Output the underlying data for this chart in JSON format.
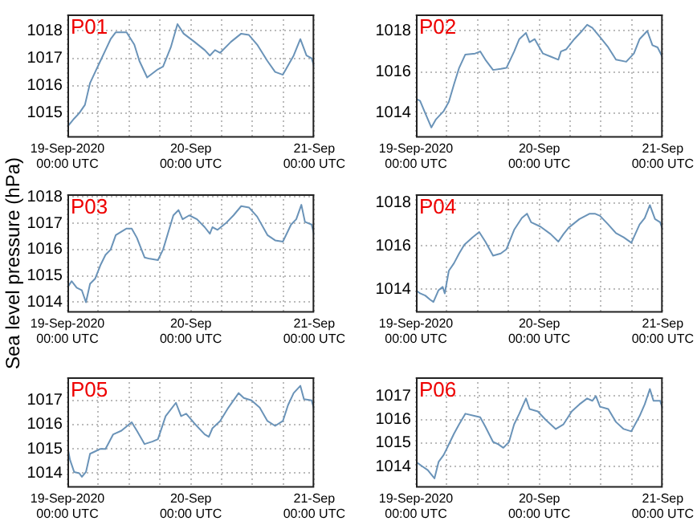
{
  "chart_data": [
    {
      "type": "line",
      "title": "P01",
      "marker": "none",
      "grid": true,
      "xlim": [
        "2020-09-19T00:00",
        "2020-09-21T00:00"
      ],
      "xticks": [
        {
          "value": "2020-09-19T00:00",
          "label": "19-Sep-2020\n00:00 UTC"
        },
        {
          "value": "2020-09-19T06:00",
          "label": null
        },
        {
          "value": "2020-09-19T12:00",
          "label": null
        },
        {
          "value": "2020-09-19T18:00",
          "label": null
        },
        {
          "value": "2020-09-20T00:00",
          "label": "20-Sep\n00:00 UTC"
        },
        {
          "value": "2020-09-20T06:00",
          "label": null
        },
        {
          "value": "2020-09-20T12:00",
          "label": null
        },
        {
          "value": "2020-09-20T18:00",
          "label": null
        },
        {
          "value": "2020-09-21T00:00",
          "label": "21-Sep\n00:00 UTC"
        }
      ],
      "ylim": [
        1014.1,
        1018.6
      ],
      "yticks": [
        1015,
        1016,
        1017,
        1018
      ],
      "x": [
        "2020-09-19T00:00",
        "2020-09-19T01:18",
        "2020-09-19T02:18",
        "2020-09-19T03:24",
        "2020-09-19T04:24",
        "2020-09-19T05:24",
        "2020-09-19T06:24",
        "2020-09-19T07:24",
        "2020-09-19T08:24",
        "2020-09-19T09:24",
        "2020-09-19T11:30",
        "2020-09-19T13:00",
        "2020-09-19T14:00",
        "2020-09-19T15:30",
        "2020-09-19T17:36",
        "2020-09-19T18:36",
        "2020-09-19T20:06",
        "2020-09-19T21:24",
        "2020-09-19T22:36",
        "2020-09-20T00:42",
        "2020-09-20T02:42",
        "2020-09-20T03:42",
        "2020-09-20T04:42",
        "2020-09-20T05:42",
        "2020-09-20T07:48",
        "2020-09-20T09:48",
        "2020-09-20T11:18",
        "2020-09-20T12:54",
        "2020-09-20T14:54",
        "2020-09-20T16:24",
        "2020-09-20T17:54",
        "2020-09-20T20:00",
        "2020-09-20T21:18",
        "2020-09-20T22:30",
        "2020-09-20T23:30",
        "2020-09-21T00:00"
      ],
      "series": [
        {
          "color": "#6a93b8",
          "values": [
            1014.5,
            1014.8,
            1015.0,
            1015.3,
            1016.1,
            1016.5,
            1016.9,
            1017.3,
            1017.7,
            1017.95,
            1017.95,
            1017.5,
            1016.9,
            1016.3,
            1016.6,
            1016.7,
            1017.4,
            1018.25,
            1017.9,
            1017.6,
            1017.3,
            1017.1,
            1017.3,
            1017.2,
            1017.6,
            1017.9,
            1017.85,
            1017.5,
            1016.9,
            1016.5,
            1016.4,
            1017.1,
            1017.7,
            1017.1,
            1017.0,
            1016.7
          ]
        }
      ]
    },
    {
      "type": "line",
      "title": "P02",
      "marker": "none",
      "grid": true,
      "xlim": [
        "2020-09-19T00:00",
        "2020-09-21T00:00"
      ],
      "xticks": [
        {
          "value": "2020-09-19T00:00",
          "label": "19-Sep-2020\n00:00 UTC"
        },
        {
          "value": "2020-09-19T06:00",
          "label": null
        },
        {
          "value": "2020-09-19T12:00",
          "label": null
        },
        {
          "value": "2020-09-19T18:00",
          "label": null
        },
        {
          "value": "2020-09-20T00:00",
          "label": "20-Sep\n00:00 UTC"
        },
        {
          "value": "2020-09-20T06:00",
          "label": null
        },
        {
          "value": "2020-09-20T12:00",
          "label": null
        },
        {
          "value": "2020-09-20T18:00",
          "label": null
        },
        {
          "value": "2020-09-21T00:00",
          "label": "21-Sep\n00:00 UTC"
        }
      ],
      "ylim": [
        1012.8,
        1018.8
      ],
      "yticks": [
        1014,
        1016,
        1018
      ],
      "x": [
        "2020-09-19T00:00",
        "2020-09-19T00:48",
        "2020-09-19T01:48",
        "2020-09-19T03:00",
        "2020-09-19T03:54",
        "2020-09-19T05:24",
        "2020-09-19T06:24",
        "2020-09-19T07:24",
        "2020-09-19T08:24",
        "2020-09-19T09:36",
        "2020-09-19T11:30",
        "2020-09-19T12:30",
        "2020-09-19T13:30",
        "2020-09-19T15:00",
        "2020-09-19T16:30",
        "2020-09-19T17:36",
        "2020-09-19T19:06",
        "2020-09-19T20:06",
        "2020-09-19T21:24",
        "2020-09-19T22:06",
        "2020-09-19T23:06",
        "2020-09-20T00:42",
        "2020-09-20T02:12",
        "2020-09-20T03:42",
        "2020-09-20T04:12",
        "2020-09-20T05:12",
        "2020-09-20T06:48",
        "2020-09-20T08:18",
        "2020-09-20T09:18",
        "2020-09-20T10:18",
        "2020-09-20T11:48",
        "2020-09-20T13:24",
        "2020-09-20T14:54",
        "2020-09-20T16:54",
        "2020-09-20T18:24",
        "2020-09-20T19:30",
        "2020-09-20T21:00",
        "2020-09-20T22:00",
        "2020-09-20T23:00",
        "2020-09-21T00:00"
      ],
      "series": [
        {
          "color": "#6a93b8",
          "values": [
            1014.7,
            1014.6,
            1014.0,
            1013.3,
            1013.7,
            1014.1,
            1014.55,
            1015.4,
            1016.2,
            1016.85,
            1016.9,
            1017.0,
            1016.6,
            1016.1,
            1016.15,
            1016.2,
            1017.0,
            1017.6,
            1017.9,
            1017.45,
            1017.6,
            1016.9,
            1016.75,
            1016.6,
            1017.0,
            1017.1,
            1017.6,
            1018.0,
            1018.3,
            1018.15,
            1017.7,
            1017.2,
            1016.6,
            1016.5,
            1016.9,
            1017.6,
            1018.0,
            1017.3,
            1017.2,
            1016.7
          ]
        }
      ]
    },
    {
      "type": "line",
      "title": "P03",
      "ylabel": "Sea level pressure (hPa)",
      "marker": "none",
      "grid": true,
      "xlim": [
        "2020-09-19T00:00",
        "2020-09-21T00:00"
      ],
      "xticks": [
        {
          "value": "2020-09-19T00:00",
          "label": "19-Sep-2020\n00:00 UTC"
        },
        {
          "value": "2020-09-19T06:00",
          "label": null
        },
        {
          "value": "2020-09-19T12:00",
          "label": null
        },
        {
          "value": "2020-09-19T18:00",
          "label": null
        },
        {
          "value": "2020-09-20T00:00",
          "label": "20-Sep\n00:00 UTC"
        },
        {
          "value": "2020-09-20T06:00",
          "label": null
        },
        {
          "value": "2020-09-20T12:00",
          "label": null
        },
        {
          "value": "2020-09-20T18:00",
          "label": null
        },
        {
          "value": "2020-09-21T00:00",
          "label": "21-Sep\n00:00 UTC"
        }
      ],
      "ylim": [
        1013.6,
        1018.1
      ],
      "yticks": [
        1014,
        1015,
        1016,
        1017,
        1018
      ],
      "x": [
        "2020-09-19T00:00",
        "2020-09-19T00:48",
        "2020-09-19T01:48",
        "2020-09-19T02:48",
        "2020-09-19T03:36",
        "2020-09-19T04:24",
        "2020-09-19T05:24",
        "2020-09-19T06:24",
        "2020-09-19T07:24",
        "2020-09-19T08:24",
        "2020-09-19T09:24",
        "2020-09-19T11:30",
        "2020-09-19T12:30",
        "2020-09-19T13:30",
        "2020-09-19T15:00",
        "2020-09-19T16:00",
        "2020-09-19T17:36",
        "2020-09-19T18:36",
        "2020-09-19T19:36",
        "2020-09-19T20:36",
        "2020-09-19T21:36",
        "2020-09-19T22:24",
        "2020-09-19T23:42",
        "2020-09-20T01:12",
        "2020-09-20T02:42",
        "2020-09-20T03:42",
        "2020-09-20T04:12",
        "2020-09-20T05:12",
        "2020-09-20T06:48",
        "2020-09-20T08:18",
        "2020-09-20T09:48",
        "2020-09-20T11:18",
        "2020-09-20T12:54",
        "2020-09-20T14:54",
        "2020-09-20T16:24",
        "2020-09-20T17:54",
        "2020-09-20T19:30",
        "2020-09-20T20:30",
        "2020-09-20T21:30",
        "2020-09-20T22:12",
        "2020-09-20T23:30",
        "2020-09-21T00:00"
      ],
      "series": [
        {
          "color": "#6a93b8",
          "values": [
            1014.55,
            1014.8,
            1014.55,
            1014.45,
            1014.0,
            1014.7,
            1014.9,
            1015.4,
            1015.8,
            1016.0,
            1016.55,
            1016.8,
            1016.8,
            1016.45,
            1015.7,
            1015.65,
            1015.6,
            1016.0,
            1016.65,
            1017.3,
            1017.5,
            1017.15,
            1017.3,
            1017.15,
            1016.85,
            1016.6,
            1016.85,
            1016.75,
            1017.0,
            1017.3,
            1017.65,
            1017.6,
            1017.25,
            1016.55,
            1016.35,
            1016.3,
            1016.95,
            1017.15,
            1017.7,
            1017.05,
            1016.95,
            1016.55
          ]
        }
      ]
    },
    {
      "type": "line",
      "title": "P04",
      "marker": "none",
      "grid": true,
      "xlim": [
        "2020-09-19T00:00",
        "2020-09-21T00:00"
      ],
      "xticks": [
        {
          "value": "2020-09-19T00:00",
          "label": "19-Sep-2020\n00:00 UTC"
        },
        {
          "value": "2020-09-19T06:00",
          "label": null
        },
        {
          "value": "2020-09-19T12:00",
          "label": null
        },
        {
          "value": "2020-09-19T18:00",
          "label": null
        },
        {
          "value": "2020-09-20T00:00",
          "label": "20-Sep\n00:00 UTC"
        },
        {
          "value": "2020-09-20T06:00",
          "label": null
        },
        {
          "value": "2020-09-20T12:00",
          "label": null
        },
        {
          "value": "2020-09-20T18:00",
          "label": null
        },
        {
          "value": "2020-09-21T00:00",
          "label": "21-Sep\n00:00 UTC"
        }
      ],
      "ylim": [
        1012.9,
        1018.4
      ],
      "yticks": [
        1014,
        1016,
        1018
      ],
      "x": [
        "2020-09-19T00:00",
        "2020-09-19T00:48",
        "2020-09-19T01:48",
        "2020-09-19T02:48",
        "2020-09-19T03:24",
        "2020-09-19T04:24",
        "2020-09-19T05:12",
        "2020-09-19T05:36",
        "2020-09-19T06:24",
        "2020-09-19T07:24",
        "2020-09-19T08:24",
        "2020-09-19T09:24",
        "2020-09-19T11:00",
        "2020-09-19T12:18",
        "2020-09-19T13:30",
        "2020-09-19T15:00",
        "2020-09-19T16:30",
        "2020-09-19T17:36",
        "2020-09-19T19:06",
        "2020-09-19T20:36",
        "2020-09-19T21:36",
        "2020-09-19T22:24",
        "2020-09-20T00:12",
        "2020-09-20T02:12",
        "2020-09-20T03:42",
        "2020-09-20T04:42",
        "2020-09-20T05:42",
        "2020-09-20T07:48",
        "2020-09-20T09:48",
        "2020-09-20T10:48",
        "2020-09-20T11:48",
        "2020-09-20T13:24",
        "2020-09-20T14:54",
        "2020-09-20T16:24",
        "2020-09-20T17:54",
        "2020-09-20T19:30",
        "2020-09-20T20:30",
        "2020-09-20T21:30",
        "2020-09-20T22:30",
        "2020-09-20T23:30",
        "2020-09-21T00:00"
      ],
      "series": [
        {
          "color": "#6a93b8",
          "values": [
            1013.95,
            1013.8,
            1013.7,
            1013.5,
            1013.4,
            1013.95,
            1014.1,
            1013.8,
            1014.85,
            1015.2,
            1015.65,
            1016.05,
            1016.4,
            1016.65,
            1016.2,
            1015.55,
            1015.65,
            1015.85,
            1016.75,
            1017.3,
            1017.5,
            1017.1,
            1016.9,
            1016.55,
            1016.2,
            1016.55,
            1016.85,
            1017.25,
            1017.5,
            1017.5,
            1017.4,
            1017.0,
            1016.6,
            1016.4,
            1016.15,
            1017.0,
            1017.3,
            1017.9,
            1017.25,
            1017.1,
            1016.75
          ]
        }
      ]
    },
    {
      "type": "line",
      "title": "P05",
      "marker": "none",
      "grid": true,
      "xlim": [
        "2020-09-19T00:00",
        "2020-09-21T00:00"
      ],
      "xticks": [
        {
          "value": "2020-09-19T00:00",
          "label": "19-Sep-2020\n00:00 UTC"
        },
        {
          "value": "2020-09-19T06:00",
          "label": null
        },
        {
          "value": "2020-09-19T12:00",
          "label": null
        },
        {
          "value": "2020-09-19T18:00",
          "label": null
        },
        {
          "value": "2020-09-20T00:00",
          "label": "20-Sep\n00:00 UTC"
        },
        {
          "value": "2020-09-20T06:00",
          "label": null
        },
        {
          "value": "2020-09-20T12:00",
          "label": null
        },
        {
          "value": "2020-09-20T18:00",
          "label": null
        },
        {
          "value": "2020-09-21T00:00",
          "label": "21-Sep\n00:00 UTC"
        }
      ],
      "ylim": [
        1013.4,
        1017.95
      ],
      "yticks": [
        1014,
        1015,
        1016,
        1017
      ],
      "x": [
        "2020-09-19T00:00",
        "2020-09-19T00:30",
        "2020-09-19T01:18",
        "2020-09-19T02:18",
        "2020-09-19T02:48",
        "2020-09-19T03:36",
        "2020-09-19T04:24",
        "2020-09-19T05:24",
        "2020-09-19T06:24",
        "2020-09-19T07:24",
        "2020-09-19T07:54",
        "2020-09-19T08:54",
        "2020-09-19T10:30",
        "2020-09-19T12:30",
        "2020-09-19T13:30",
        "2020-09-19T15:00",
        "2020-09-19T16:30",
        "2020-09-19T17:36",
        "2020-09-19T19:06",
        "2020-09-19T21:06",
        "2020-09-19T22:06",
        "2020-09-19T23:06",
        "2020-09-20T00:42",
        "2020-09-20T02:42",
        "2020-09-20T03:30",
        "2020-09-20T04:12",
        "2020-09-20T05:42",
        "2020-09-20T07:18",
        "2020-09-20T09:18",
        "2020-09-20T10:18",
        "2020-09-20T11:48",
        "2020-09-20T13:24",
        "2020-09-20T14:54",
        "2020-09-20T16:24",
        "2020-09-20T17:54",
        "2020-09-20T18:54",
        "2020-09-20T20:00",
        "2020-09-20T21:18",
        "2020-09-20T22:00",
        "2020-09-20T23:30",
        "2020-09-21T00:00"
      ],
      "series": [
        {
          "color": "#6a93b8",
          "values": [
            1015.1,
            1014.55,
            1014.05,
            1014.0,
            1013.85,
            1014.05,
            1014.8,
            1014.9,
            1015.0,
            1015.0,
            1015.2,
            1015.6,
            1015.75,
            1016.1,
            1015.75,
            1015.2,
            1015.3,
            1015.4,
            1016.35,
            1016.9,
            1016.35,
            1016.45,
            1016.05,
            1015.6,
            1015.5,
            1015.85,
            1016.15,
            1016.7,
            1017.3,
            1017.1,
            1017.0,
            1016.7,
            1016.15,
            1015.95,
            1016.15,
            1016.8,
            1017.3,
            1017.6,
            1017.05,
            1017.0,
            1016.6
          ]
        }
      ]
    },
    {
      "type": "line",
      "title": "P06",
      "marker": "none",
      "grid": true,
      "xlim": [
        "2020-09-19T00:00",
        "2020-09-21T00:00"
      ],
      "xticks": [
        {
          "value": "2020-09-19T00:00",
          "label": "19-Sep-2020\n00:00 UTC"
        },
        {
          "value": "2020-09-19T06:00",
          "label": null
        },
        {
          "value": "2020-09-19T12:00",
          "label": null
        },
        {
          "value": "2020-09-19T18:00",
          "label": null
        },
        {
          "value": "2020-09-20T00:00",
          "label": "20-Sep\n00:00 UTC"
        },
        {
          "value": "2020-09-20T06:00",
          "label": null
        },
        {
          "value": "2020-09-20T12:00",
          "label": null
        },
        {
          "value": "2020-09-20T18:00",
          "label": null
        },
        {
          "value": "2020-09-21T00:00",
          "label": "21-Sep\n00:00 UTC"
        }
      ],
      "ylim": [
        1013.1,
        1017.8
      ],
      "yticks": [
        1014,
        1015,
        1016,
        1017
      ],
      "x": [
        "2020-09-19T00:00",
        "2020-09-19T01:18",
        "2020-09-19T02:18",
        "2020-09-19T03:36",
        "2020-09-19T04:24",
        "2020-09-19T05:24",
        "2020-09-19T06:24",
        "2020-09-19T07:24",
        "2020-09-19T08:24",
        "2020-09-19T09:36",
        "2020-09-19T11:30",
        "2020-09-19T12:30",
        "2020-09-19T13:30",
        "2020-09-19T15:00",
        "2020-09-19T16:00",
        "2020-09-19T17:00",
        "2020-09-19T18:06",
        "2020-09-19T19:06",
        "2020-09-19T20:06",
        "2020-09-19T21:24",
        "2020-09-19T22:06",
        "2020-09-19T23:42",
        "2020-09-20T01:12",
        "2020-09-20T03:12",
        "2020-09-20T04:42",
        "2020-09-20T06:18",
        "2020-09-20T07:48",
        "2020-09-20T09:18",
        "2020-09-20T10:18",
        "2020-09-20T11:00",
        "2020-09-20T11:48",
        "2020-09-20T13:24",
        "2020-09-20T14:54",
        "2020-09-20T16:24",
        "2020-09-20T17:54",
        "2020-09-20T19:30",
        "2020-09-20T20:30",
        "2020-09-20T21:30",
        "2020-09-20T22:12",
        "2020-09-20T23:30",
        "2020-09-21T00:00"
      ],
      "series": [
        {
          "color": "#6a93b8",
          "values": [
            1014.2,
            1014.0,
            1013.85,
            1013.5,
            1014.2,
            1014.5,
            1014.95,
            1015.4,
            1015.8,
            1016.25,
            1016.15,
            1016.1,
            1015.7,
            1015.05,
            1014.95,
            1014.8,
            1015.05,
            1015.8,
            1016.25,
            1016.9,
            1016.45,
            1016.35,
            1016.0,
            1015.6,
            1015.8,
            1016.35,
            1016.65,
            1016.9,
            1016.8,
            1017.0,
            1016.55,
            1016.45,
            1015.9,
            1015.6,
            1015.5,
            1016.15,
            1016.65,
            1017.3,
            1016.8,
            1016.8,
            1016.45
          ]
        }
      ]
    }
  ]
}
